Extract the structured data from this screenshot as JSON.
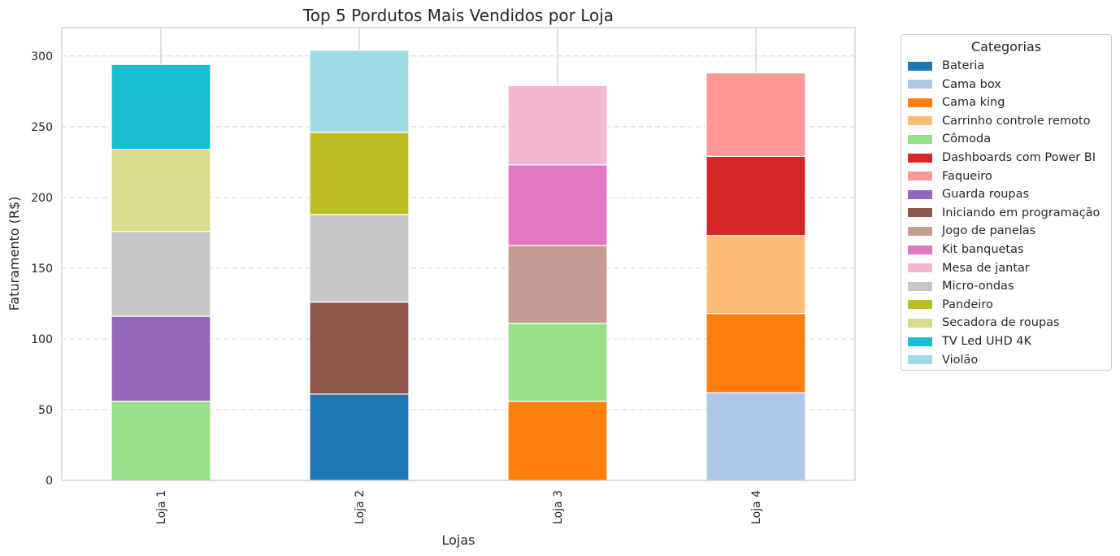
{
  "chart_data": {
    "type": "bar",
    "stacked": true,
    "title": "Top 5 Pordutos Mais Vendidos por Loja",
    "xlabel": "Lojas",
    "ylabel": "Faturamento (R$)",
    "ylim": [
      0,
      320
    ],
    "yticks": [
      0,
      50,
      100,
      150,
      200,
      250,
      300
    ],
    "grid": "y-dashed",
    "legend_title": "Categorias",
    "legend_position": "outside-right",
    "categories": [
      "Loja 1",
      "Loja 2",
      "Loja 3",
      "Loja 4"
    ],
    "series": [
      {
        "name": "Bateria",
        "color": "#1f77b4",
        "values": [
          0,
          61,
          0,
          0
        ]
      },
      {
        "name": "Cama box",
        "color": "#aec7e8",
        "values": [
          0,
          0,
          0,
          62
        ]
      },
      {
        "name": "Cama king",
        "color": "#ff7f0e",
        "values": [
          0,
          0,
          56,
          56
        ]
      },
      {
        "name": "Carrinho controle remoto",
        "color": "#ffbb78",
        "values": [
          0,
          0,
          0,
          55
        ]
      },
      {
        "name": "Cômoda",
        "color": "#98df8a",
        "values": [
          56,
          0,
          55,
          0
        ]
      },
      {
        "name": "Dashboards com Power BI",
        "color": "#d62728",
        "values": [
          0,
          0,
          0,
          56
        ]
      },
      {
        "name": "Faqueiro",
        "color": "#ff9896",
        "values": [
          0,
          0,
          0,
          59
        ]
      },
      {
        "name": "Guarda roupas",
        "color": "#9467bd",
        "values": [
          60,
          0,
          0,
          0
        ]
      },
      {
        "name": "Iniciando em programação",
        "color": "#8c564b",
        "values": [
          0,
          65,
          0,
          0
        ]
      },
      {
        "name": "Jogo de panelas",
        "color": "#c49c94",
        "values": [
          0,
          0,
          55,
          0
        ]
      },
      {
        "name": "Kit banquetas",
        "color": "#e377c2",
        "values": [
          0,
          0,
          57,
          0
        ]
      },
      {
        "name": "Mesa de jantar",
        "color": "#f7b6d2",
        "values": [
          0,
          0,
          56,
          0
        ]
      },
      {
        "name": "Micro-ondas",
        "color": "#c7c7c7",
        "values": [
          60,
          62,
          0,
          0
        ]
      },
      {
        "name": "Pandeiro",
        "color": "#bcbd22",
        "values": [
          0,
          58,
          0,
          0
        ]
      },
      {
        "name": "Secadora de roupas",
        "color": "#dbdb8d",
        "values": [
          58,
          0,
          0,
          0
        ]
      },
      {
        "name": "TV Led UHD 4K",
        "color": "#17becf",
        "values": [
          60,
          0,
          0,
          0
        ]
      },
      {
        "name": "Violão",
        "color": "#9edae5",
        "values": [
          0,
          58,
          0,
          0
        ]
      }
    ]
  }
}
